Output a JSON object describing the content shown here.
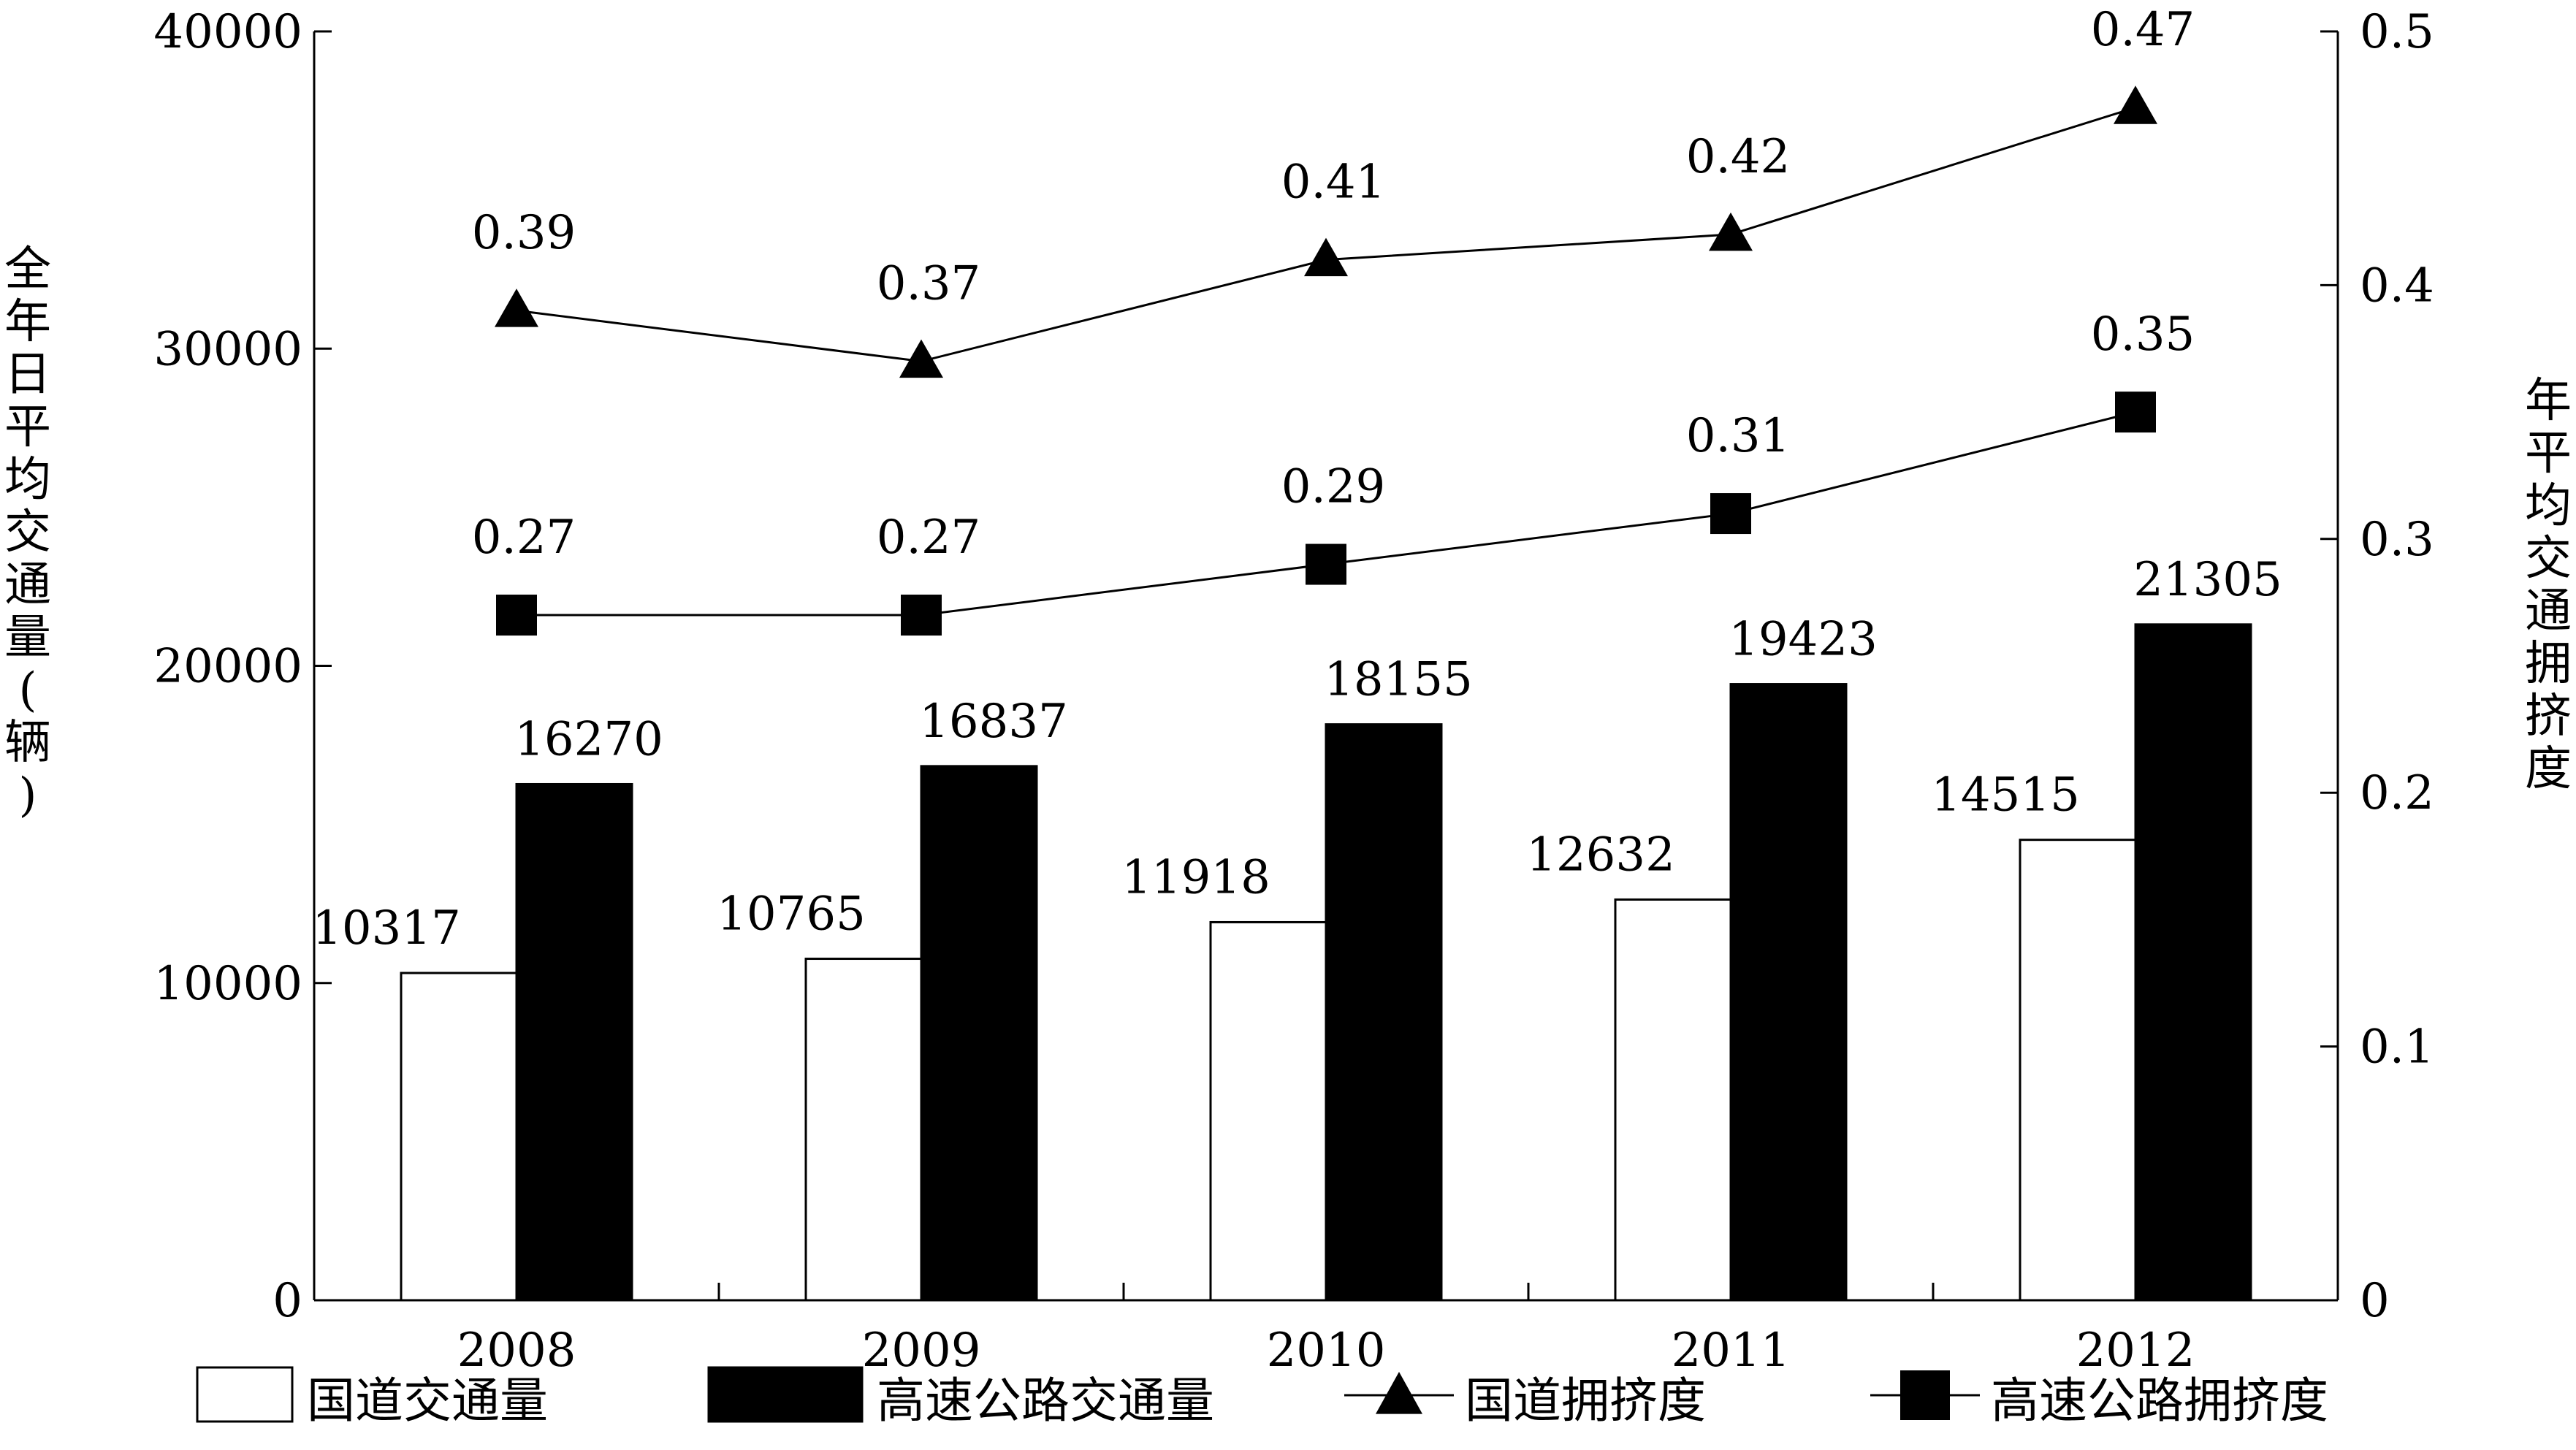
{
  "chart_data": {
    "type": "bar",
    "categories": [
      "2008",
      "2009",
      "2010",
      "2011",
      "2012"
    ],
    "ylabel_left": "全年日平均交通量(辆)",
    "ylabel_right": "年平均交通拥挤度",
    "y_left": {
      "range": [
        0,
        40000
      ],
      "ticks": [
        "0",
        "10000",
        "20000",
        "30000",
        "40000"
      ]
    },
    "y_right": {
      "range": [
        0,
        0.5
      ],
      "ticks": [
        "0",
        "0.1",
        "0.2",
        "0.3",
        "0.4",
        "0.5"
      ]
    },
    "grid": false,
    "legend_position": "bottom",
    "series": [
      {
        "name": "国道交通量",
        "kind": "bar",
        "axis": "left",
        "fill": "#ffffff",
        "values": [
          10317,
          10765,
          11918,
          12632,
          14515
        ],
        "labels": [
          "10317",
          "10765",
          "11918",
          "12632",
          "14515"
        ]
      },
      {
        "name": "高速公路交通量",
        "kind": "bar",
        "axis": "left",
        "fill": "#000000",
        "values": [
          16270,
          16837,
          18155,
          19423,
          21305
        ],
        "labels": [
          "16270",
          "16837",
          "18155",
          "19423",
          "21305"
        ]
      },
      {
        "name": "国道拥挤度",
        "kind": "line",
        "axis": "right",
        "marker": "triangle",
        "values": [
          0.39,
          0.37,
          0.41,
          0.42,
          0.47
        ],
        "labels": [
          "0.39",
          "0.37",
          "0.41",
          "0.42",
          "0.47"
        ]
      },
      {
        "name": "高速公路拥挤度",
        "kind": "line",
        "axis": "right",
        "marker": "square",
        "values": [
          0.27,
          0.27,
          0.29,
          0.31,
          0.35
        ],
        "labels": [
          "0.27",
          "0.27",
          "0.29",
          "0.31",
          "0.35"
        ]
      }
    ]
  }
}
